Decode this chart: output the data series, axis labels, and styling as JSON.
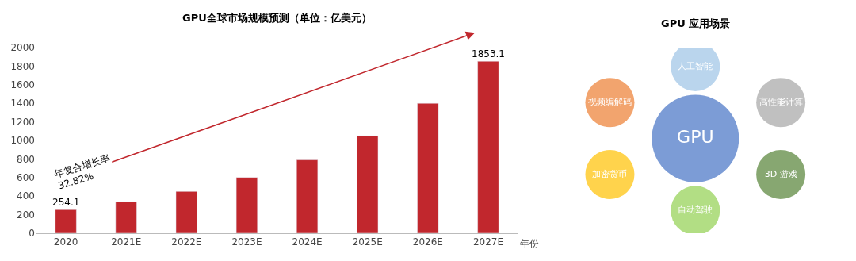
{
  "chart_data": [
    {
      "type": "bar",
      "title": "GPU全球市场规模预测（单位：亿美元）",
      "xlabel": "年份",
      "categories": [
        "2020",
        "2021E",
        "2022E",
        "2023E",
        "2024E",
        "2025E",
        "2026E",
        "2027E"
      ],
      "values": [
        254.1,
        340,
        450,
        600,
        790,
        1050,
        1400,
        1853.1
      ],
      "value_labels": [
        "254.1",
        null,
        null,
        null,
        null,
        null,
        null,
        "1853.1"
      ],
      "color": "#c1272d",
      "ylim": [
        0,
        2000
      ],
      "yticks": [
        0,
        200,
        400,
        600,
        800,
        1000,
        1200,
        1400,
        1600,
        1800,
        2000
      ],
      "annotations": [
        "年复合增长率\n32.82%"
      ]
    },
    {
      "type": "other",
      "title": "GPU 应用场景",
      "categories": [
        "GPU",
        "人工智能",
        "高性能计算",
        "3D 游戏",
        "自动驾驶",
        "加密货币",
        "视频编解码"
      ],
      "colors": [
        "#4472c4",
        "#9dc3e6",
        "#a5a5a5",
        "#548235",
        "#92d050",
        "#ffc000",
        "#ed7d31"
      ]
    }
  ]
}
